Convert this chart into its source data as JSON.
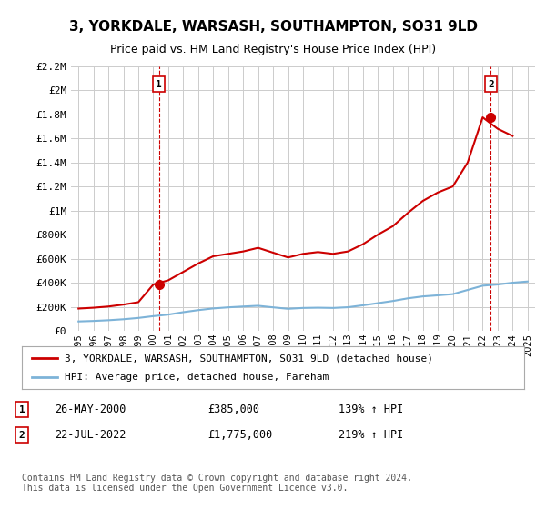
{
  "title": "3, YORKDALE, WARSASH, SOUTHAMPTON, SO31 9LD",
  "subtitle": "Price paid vs. HM Land Registry's House Price Index (HPI)",
  "title_fontsize": 11,
  "subtitle_fontsize": 9.5,
  "background_color": "#ffffff",
  "plot_bg_color": "#ffffff",
  "grid_color": "#cccccc",
  "hpi_line_color": "#7db3d8",
  "house_line_color": "#cc0000",
  "ylim": [
    0,
    2200000
  ],
  "yticks": [
    0,
    200000,
    400000,
    600000,
    800000,
    1000000,
    1200000,
    1400000,
    1600000,
    1800000,
    2000000,
    2200000
  ],
  "ytick_labels": [
    "£0",
    "£200K",
    "£400K",
    "£600K",
    "£800K",
    "£1M",
    "£1.2M",
    "£1.4M",
    "£1.6M",
    "£1.8M",
    "£2M",
    "£2.2M"
  ],
  "xlim_start": 1994.5,
  "xlim_end": 2025.5,
  "xticks": [
    1995,
    1996,
    1997,
    1998,
    1999,
    2000,
    2001,
    2002,
    2003,
    2004,
    2005,
    2006,
    2007,
    2008,
    2009,
    2010,
    2011,
    2012,
    2013,
    2014,
    2015,
    2016,
    2017,
    2018,
    2019,
    2020,
    2021,
    2022,
    2023,
    2024,
    2025
  ],
  "hpi_years": [
    1995,
    1996,
    1997,
    1998,
    1999,
    2000,
    2001,
    2002,
    2003,
    2004,
    2005,
    2006,
    2007,
    2008,
    2009,
    2010,
    2011,
    2012,
    2013,
    2014,
    2015,
    2016,
    2017,
    2018,
    2019,
    2020,
    2021,
    2022,
    2023,
    2024,
    2025
  ],
  "hpi_values": [
    78000,
    82000,
    88000,
    96000,
    107000,
    122000,
    135000,
    155000,
    172000,
    186000,
    195000,
    202000,
    208000,
    195000,
    183000,
    190000,
    192000,
    190000,
    196000,
    212000,
    230000,
    248000,
    270000,
    286000,
    295000,
    305000,
    340000,
    375000,
    385000,
    400000,
    410000
  ],
  "house_years": [
    1995,
    1996,
    1997,
    1998,
    1999,
    2000,
    2001,
    2002,
    2003,
    2004,
    2005,
    2006,
    2007,
    2008,
    2009,
    2010,
    2011,
    2012,
    2013,
    2014,
    2015,
    2016,
    2017,
    2018,
    2019,
    2020,
    2021,
    2022,
    2023,
    2024
  ],
  "house_values": [
    185000,
    192000,
    202000,
    218000,
    238000,
    385000,
    420000,
    490000,
    560000,
    620000,
    640000,
    660000,
    690000,
    650000,
    610000,
    640000,
    655000,
    640000,
    660000,
    720000,
    800000,
    870000,
    980000,
    1080000,
    1150000,
    1200000,
    1400000,
    1775000,
    1680000,
    1620000
  ],
  "sale1_year": 2000.38,
  "sale1_price": 385000,
  "sale1_label": "1",
  "sale2_year": 2022.55,
  "sale2_price": 1775000,
  "sale2_label": "2",
  "dashed1_year": 2000.38,
  "dashed2_year": 2022.55,
  "legend_house": "3, YORKDALE, WARSASH, SOUTHAMPTON, SO31 9LD (detached house)",
  "legend_hpi": "HPI: Average price, detached house, Fareham",
  "annot1_num": "1",
  "annot1_date": "26-MAY-2000",
  "annot1_price": "£385,000",
  "annot1_hpi": "139% ↑ HPI",
  "annot2_num": "2",
  "annot2_date": "22-JUL-2022",
  "annot2_price": "£1,775,000",
  "annot2_hpi": "219% ↑ HPI",
  "footer": "Contains HM Land Registry data © Crown copyright and database right 2024.\nThis data is licensed under the Open Government Licence v3.0."
}
